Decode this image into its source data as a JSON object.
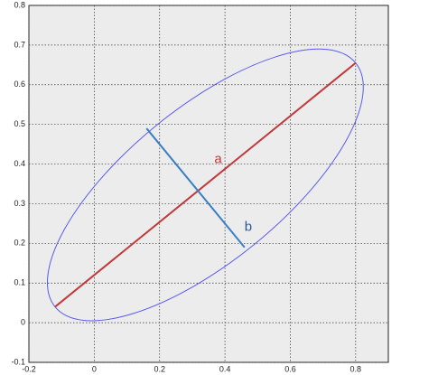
{
  "chart_data": {
    "type": "line",
    "series": [
      {
        "name": "a",
        "color": "#c0393b",
        "x": [
          -0.12,
          0.8
        ],
        "values": [
          0.04,
          0.655
        ]
      },
      {
        "name": "b",
        "color": "#3a7fc4",
        "x": [
          0.16,
          0.46
        ],
        "values": [
          0.49,
          0.19
        ]
      }
    ],
    "ellipse_color": "#5a5af0",
    "xlim": [
      -0.2,
      0.9
    ],
    "xticks": [
      -0.2,
      0,
      0.2,
      0.4,
      0.6,
      0.8
    ],
    "ylim": [
      -0.1,
      0.8
    ],
    "yticks": [
      -0.1,
      0,
      0.1,
      0.2,
      0.3,
      0.4,
      0.5,
      0.6,
      0.7,
      0.8
    ],
    "grid": true
  }
}
